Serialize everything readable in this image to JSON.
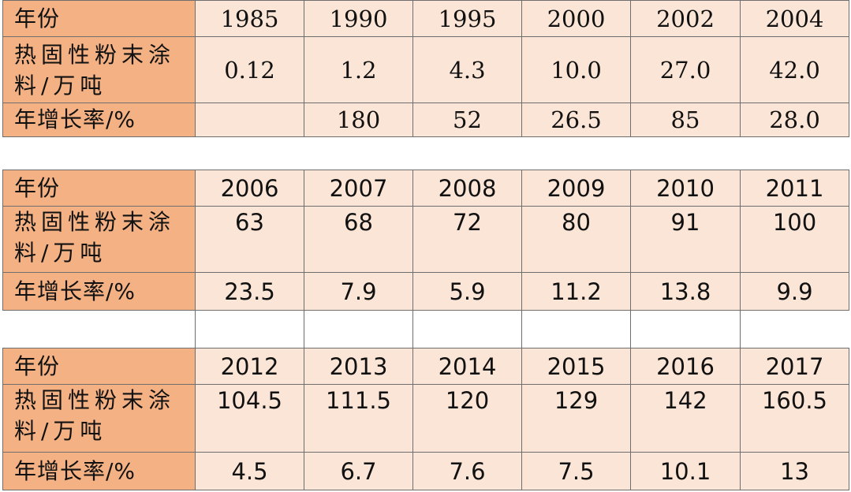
{
  "row_labels": {
    "year": "年份",
    "output": "热固性粉末涂料/万吨",
    "growth": "年增长率/%"
  },
  "tables": [
    {
      "years": [
        "1985",
        "1990",
        "1995",
        "2000",
        "2002",
        "2004"
      ],
      "output": [
        "0.12",
        "1.2",
        "4.3",
        "10.0",
        "27.0",
        "42.0"
      ],
      "growth": [
        "",
        "180",
        "52",
        "26.5",
        "85",
        "28.0"
      ]
    },
    {
      "years": [
        "2006",
        "2007",
        "2008",
        "2009",
        "2010",
        "2011"
      ],
      "output": [
        "63",
        "68",
        "72",
        "80",
        "91",
        "100"
      ],
      "growth": [
        "23.5",
        "7.9",
        "5.9",
        "11.2",
        "13.8",
        "9.9"
      ]
    },
    {
      "years": [
        "2012",
        "2013",
        "2014",
        "2015",
        "2016",
        "2017"
      ],
      "output": [
        "104.5",
        "111.5",
        "120",
        "129",
        "142",
        "160.5"
      ],
      "growth": [
        "4.5",
        "6.7",
        "7.6",
        "7.5",
        "10.1",
        "13"
      ]
    }
  ]
}
